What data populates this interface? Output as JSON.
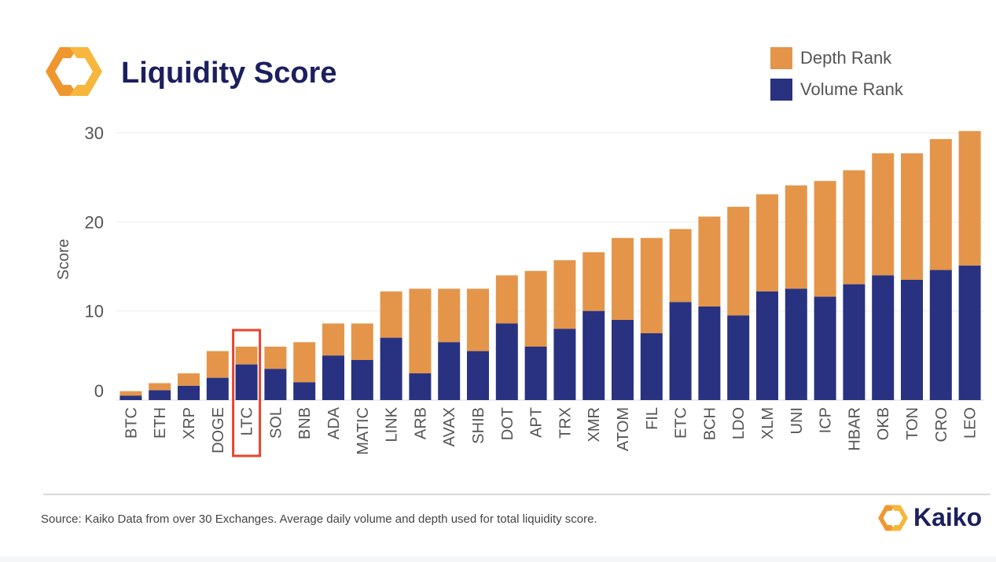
{
  "header": {
    "title": "Liquidity Score",
    "brand": "Kaiko"
  },
  "footer": {
    "source": "Source: Kaiko Data from over 30 Exchanges. Average daily volume and depth used for total liquidity score."
  },
  "colors": {
    "depth": "#e4954a",
    "volume": "#283280",
    "highlight": "#e8432e",
    "title": "#1c1f5e"
  },
  "chart_data": {
    "type": "bar",
    "stacked": true,
    "title": "Liquidity Score",
    "xlabel": "",
    "ylabel": "Score",
    "ylim": [
      0,
      30
    ],
    "yticks": [
      0,
      10,
      20,
      30
    ],
    "grid": true,
    "legend_placement": "top-right",
    "highlighted_category": "LTC",
    "categories": [
      "BTC",
      "ETH",
      "XRP",
      "DOGE",
      "LTC",
      "SOL",
      "BNB",
      "ADA",
      "MATIC",
      "LINK",
      "ARB",
      "AVAX",
      "SHIB",
      "DOT",
      "APT",
      "TRX",
      "XMR",
      "ATOM",
      "FIL",
      "ETC",
      "BCH",
      "LDO",
      "XLM",
      "UNI",
      "ICP",
      "HBAR",
      "OKB",
      "TON",
      "CRO",
      "LEO"
    ],
    "series": [
      {
        "name": "Volume Rank",
        "values": [
          0.5,
          1.1,
          1.6,
          2.5,
          4.0,
          3.5,
          2.0,
          5.0,
          4.5,
          7.0,
          3.0,
          6.5,
          5.5,
          8.6,
          6.0,
          8.0,
          10.0,
          9.0,
          7.5,
          11.0,
          10.5,
          9.5,
          12.2,
          12.5,
          11.6,
          13.0,
          14.0,
          13.5,
          14.6,
          15.1
        ]
      },
      {
        "name": "Depth Rank",
        "values": [
          0.5,
          0.8,
          1.4,
          3.0,
          2.0,
          2.5,
          4.5,
          3.6,
          4.1,
          5.2,
          9.5,
          6.0,
          7.0,
          5.4,
          8.5,
          7.7,
          6.6,
          9.2,
          10.7,
          8.2,
          10.1,
          12.2,
          10.9,
          11.6,
          13.0,
          12.8,
          13.7,
          14.2,
          14.7,
          15.1
        ]
      }
    ]
  }
}
